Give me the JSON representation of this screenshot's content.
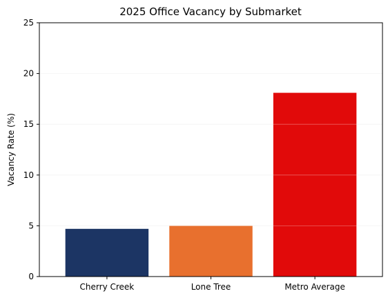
{
  "chart_data": {
    "type": "bar",
    "title": "2025 Office Vacancy by Submarket",
    "xlabel": "",
    "ylabel": "Vacancy Rate (%)",
    "categories": [
      "Cherry Creek",
      "Lone Tree",
      "Metro Average"
    ],
    "values": [
      4.7,
      5.0,
      18.1
    ],
    "colors": [
      "#1c3564",
      "#e8702e",
      "#e10a0a"
    ],
    "ylim": [
      0,
      25
    ],
    "yticks": [
      0,
      5,
      10,
      15,
      20,
      25
    ],
    "grid": true
  }
}
